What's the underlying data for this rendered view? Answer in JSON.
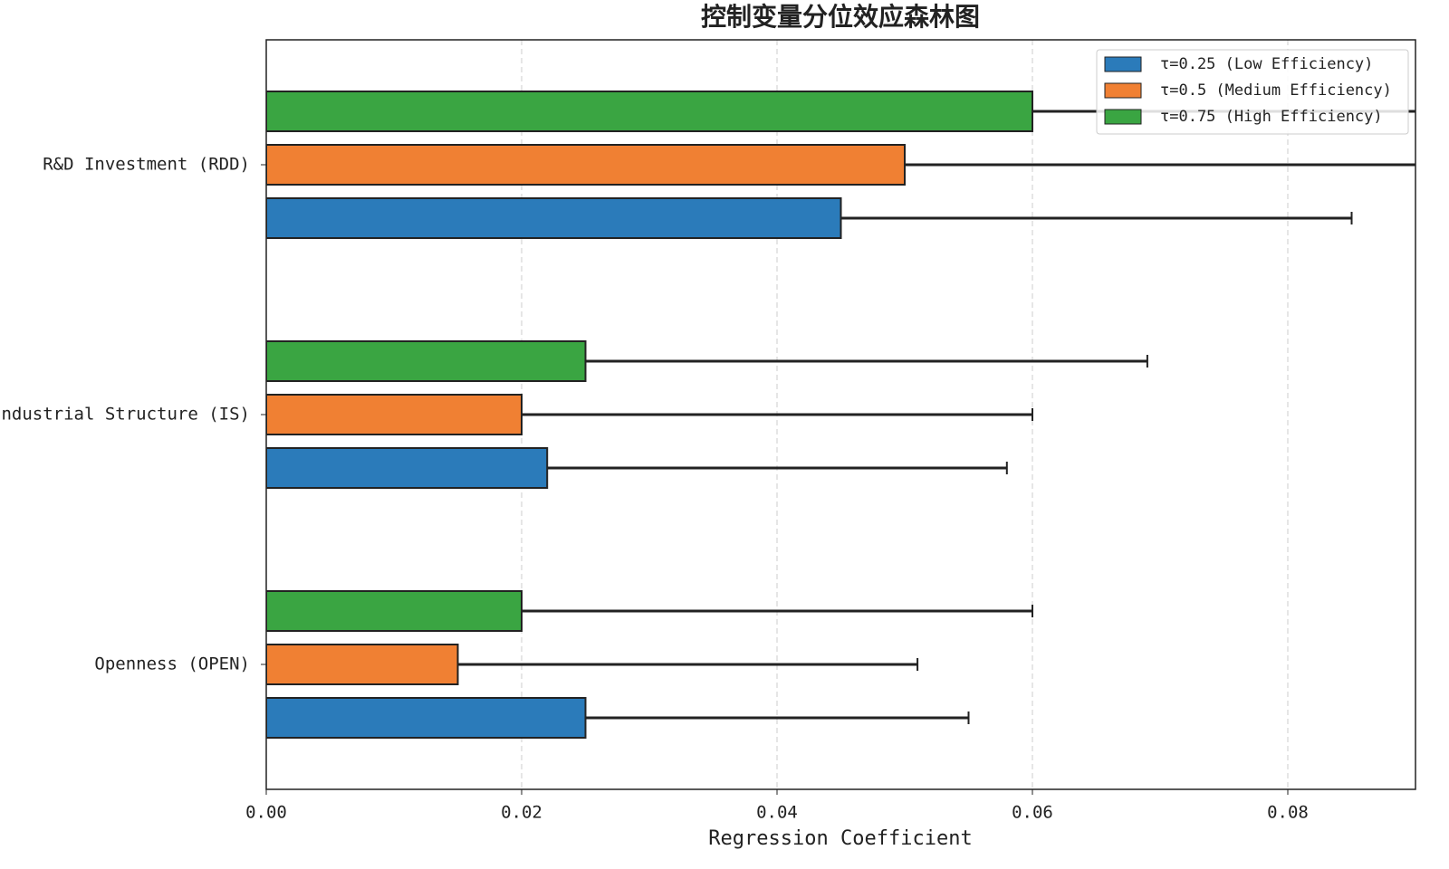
{
  "chart_data": {
    "type": "barh",
    "title": "控制变量分位效应森林图",
    "x_label": "Regression Coefficient",
    "categories": [
      "R&D Investment (RDD)",
      "Industrial Structure (IS)",
      "Openness (OPEN)"
    ],
    "series": [
      {
        "name": "τ=0.25 (Low Efficiency)",
        "color": "#2b7bba",
        "values": [
          0.045,
          0.022,
          0.025
        ],
        "errors": [
          0.04,
          0.036,
          0.03
        ]
      },
      {
        "name": "τ=0.5 (Medium Efficiency)",
        "color": "#f08033",
        "values": [
          0.05,
          0.02,
          0.015
        ],
        "errors": [
          0.045,
          0.04,
          0.036
        ]
      },
      {
        "name": "τ=0.75 (High Efficiency)",
        "color": "#3aa542",
        "values": [
          0.06,
          0.025,
          0.02
        ],
        "errors": [
          0.04,
          0.044,
          0.04
        ]
      }
    ],
    "xlim": [
      0,
      0.09
    ],
    "xticks": [
      {
        "value": 0,
        "label": "0.00"
      },
      {
        "value": 0.02,
        "label": "0.02"
      },
      {
        "value": 0.04,
        "label": "0.04"
      },
      {
        "value": 0.06,
        "label": "0.06"
      },
      {
        "value": 0.08,
        "label": "0.08"
      }
    ],
    "grid": true,
    "legend": "upper right"
  }
}
